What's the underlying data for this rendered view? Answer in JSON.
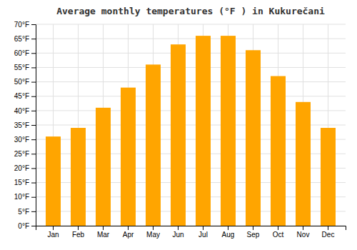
{
  "chart_data": {
    "type": "bar",
    "title": "Average monthly temperatures (°F ) in Kukurečani",
    "categories": [
      "Jan",
      "Feb",
      "Mar",
      "Apr",
      "May",
      "Jun",
      "Jul",
      "Aug",
      "Sep",
      "Oct",
      "Nov",
      "Dec"
    ],
    "values": [
      31,
      34,
      41,
      48,
      56,
      63,
      66,
      66,
      61,
      52,
      43,
      34
    ],
    "color": "#FFA500",
    "ylim": [
      0,
      70
    ],
    "yticks": [
      {
        "value": 0,
        "label": "0°F"
      },
      {
        "value": 5,
        "label": "5°F"
      },
      {
        "value": 10,
        "label": "10°F"
      },
      {
        "value": 15,
        "label": "15°F"
      },
      {
        "value": 20,
        "label": "20°F"
      },
      {
        "value": 25,
        "label": "25°F"
      },
      {
        "value": 30,
        "label": "30°F"
      },
      {
        "value": 35,
        "label": "35°F"
      },
      {
        "value": 40,
        "label": "40°F"
      },
      {
        "value": 45,
        "label": "45°F"
      },
      {
        "value": 50,
        "label": "50°F"
      },
      {
        "value": 55,
        "label": "55°F"
      },
      {
        "value": 60,
        "label": "60°F"
      },
      {
        "value": 65,
        "label": "65°F"
      },
      {
        "value": 70,
        "label": "70°F"
      }
    ],
    "grid": true
  }
}
